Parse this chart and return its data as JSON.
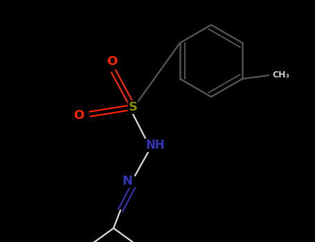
{
  "background_color": "#000000",
  "bond_color": "#c8c8c8",
  "ring_bond_color": "#505050",
  "atom_colors": {
    "O": "#ff2200",
    "S": "#888800",
    "N": "#3333bb",
    "C": "#c8c8c8"
  },
  "figsize": [
    4.55,
    3.5
  ],
  "dpi": 100
}
